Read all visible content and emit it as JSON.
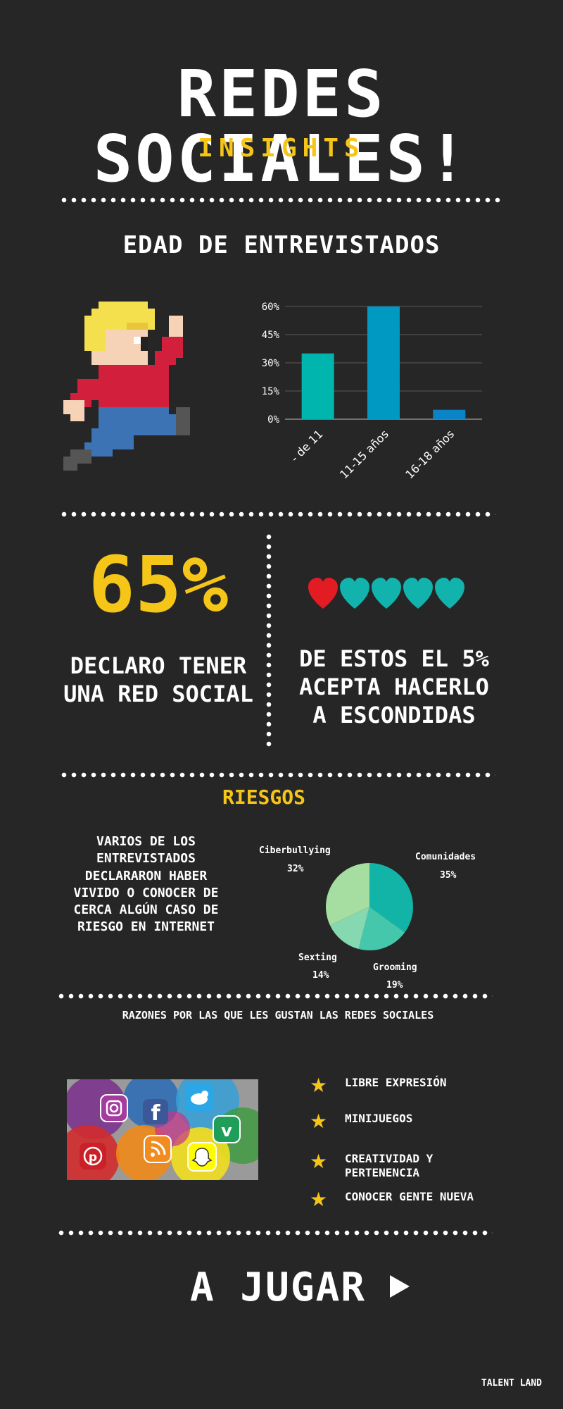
{
  "header": {
    "title": "REDES SOCIALES!",
    "subtitle": "INSIGHTS"
  },
  "age_section": {
    "title": "EDAD DE ENTREVISTADOS"
  },
  "chart_data": [
    {
      "type": "bar",
      "categories": [
        "- de 11",
        "11-15 años",
        "16-18 años"
      ],
      "values": [
        35,
        60,
        5
      ],
      "ylim": [
        0,
        60
      ],
      "yticks": [
        "0%",
        "15%",
        "30%",
        "45%",
        "60%"
      ],
      "ytick_values": [
        0,
        15,
        30,
        45,
        60
      ],
      "colors": [
        "#00b5ad",
        "#0099c2",
        "#0a84c7"
      ],
      "grid": true
    },
    {
      "type": "pie",
      "labels": [
        "Comunidades",
        "Grooming",
        "Sexting",
        "Ciberbullying"
      ],
      "values": [
        35,
        19,
        14,
        32
      ],
      "value_labels": [
        "35%",
        "19%",
        "14%",
        "32%"
      ],
      "colors": [
        "#13b4a8",
        "#45c7ac",
        "#86d8b1",
        "#a5dea0"
      ]
    }
  ],
  "stats": {
    "big_value": "65%",
    "big_label": "DECLARO TENER UNA RED SOCIAL",
    "hearts_red": 1,
    "hearts_total": 5,
    "hidden_label": "DE ESTOS EL 5% ACEPTA HACERLO A ESCONDIDAS"
  },
  "risks": {
    "title": "RIESGOS",
    "description": "VARIOS DE LOS ENTREVISTADOS DECLARARON HABER VIVIDO O CONOCER DE CERCA ALGÚN CASO DE RIESGO EN INTERNET"
  },
  "reasons": {
    "title": "RAZONES POR LAS QUE LES GUSTAN LAS REDES SOCIALES",
    "items": [
      {
        "label": "LIBRE EXPRESIÓN"
      },
      {
        "label": "MINIJUEGOS"
      },
      {
        "label": "CREATIVIDAD Y PERTENENCIA"
      },
      {
        "label": "CONOCER GENTE NUEVA"
      }
    ],
    "social_icons": [
      "instagram-icon",
      "facebook-icon",
      "twitter-icon",
      "vine-icon",
      "pinterest-icon",
      "rss-icon",
      "snapchat-icon"
    ]
  },
  "cta": {
    "label": "A JUGAR"
  },
  "footer": {
    "brand": "TALENT LAND"
  },
  "colors": {
    "background": "#262626",
    "accent": "#f5c518",
    "heart_red": "#e31b23",
    "heart_teal": "#12b3ad"
  }
}
